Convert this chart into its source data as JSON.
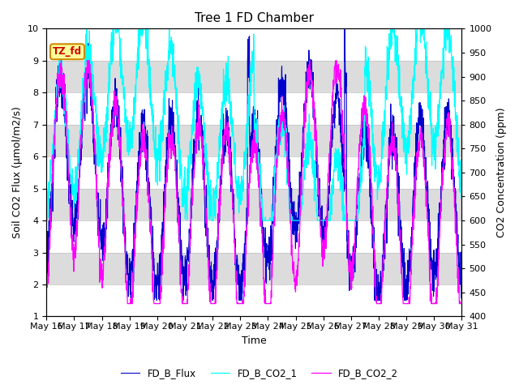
{
  "title": "Tree 1 FD Chamber",
  "xlabel": "Time",
  "ylabel_left": "Soil CO2 Flux (μmol/m2/s)",
  "ylabel_right": "CO2 Concentration (ppm)",
  "ylim_left": [
    1.0,
    10.0
  ],
  "ylim_right": [
    400,
    1000
  ],
  "yticks_left": [
    1.0,
    2.0,
    3.0,
    4.0,
    5.0,
    6.0,
    7.0,
    8.0,
    9.0,
    10.0
  ],
  "yticks_right": [
    400,
    450,
    500,
    550,
    600,
    650,
    700,
    750,
    800,
    850,
    900,
    950,
    1000
  ],
  "color_flux": "#0000CD",
  "color_co2_1": "#00FFFF",
  "color_co2_2": "#FF00FF",
  "label_flux": "FD_B_Flux",
  "label_co2_1": "FD_B_CO2_1",
  "label_co2_2": "FD_B_CO2_2",
  "annotation_text": "TZ_fd",
  "annotation_color": "#CC0000",
  "annotation_bg": "#FFFF99",
  "annotation_border": "#CC8800",
  "bg_color": "#FFFFFF",
  "gray_band_color": "#DCDCDC",
  "n_points": 2000,
  "legend_ncol": 3,
  "title_fontsize": 11,
  "axis_label_fontsize": 9,
  "tick_fontsize": 8
}
